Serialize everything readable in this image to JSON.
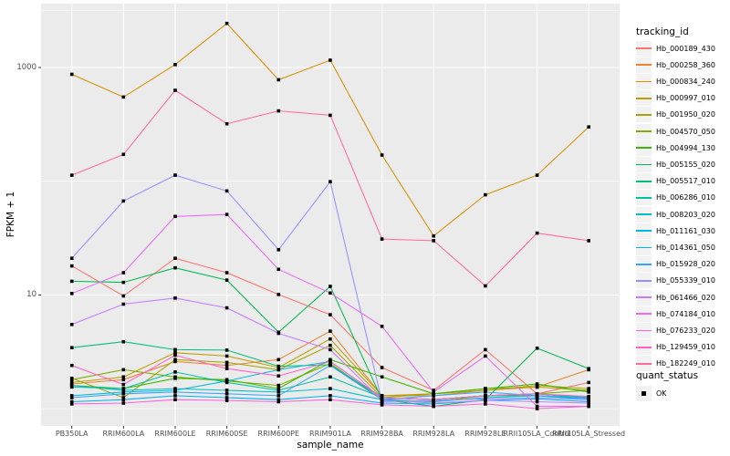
{
  "chart_data": {
    "type": "line",
    "title": "",
    "xlabel": "sample_name",
    "ylabel": "FPKM + 1",
    "y_scale": "log10",
    "ylim": [
      0.9,
      3600
    ],
    "grid": true,
    "legend_position": "right",
    "y_ticks": [
      {
        "label": "1000",
        "value": 1000
      },
      {
        "label": "10",
        "value": 10
      }
    ],
    "y_minor_gridlines": [
      1,
      100,
      3162
    ],
    "categories": [
      "PB350LA",
      "RRIM600LA",
      "RRIM600LE",
      "RRIM600SE",
      "RRIM600PE",
      "RRIM901LA",
      "RRIM928BA",
      "RRIM928LA",
      "RRIM928LE",
      "RRII105LA_Control",
      "RRII105LA_Stressed"
    ],
    "marker": {
      "shape": "square",
      "color": "#000000",
      "legend_group": "quant_status"
    },
    "series": [
      {
        "name": "Hb_000189_430",
        "color": "#F8766D",
        "values": [
          18,
          9.8,
          21,
          15.7,
          10.1,
          6.7,
          2.3,
          1.45,
          3.3,
          1.35,
          1.7
        ]
      },
      {
        "name": "Hb_000258_360",
        "color": "#EA8331",
        "values": [
          1.65,
          1.8,
          2.6,
          2.4,
          2.7,
          4.8,
          1.3,
          1.3,
          1.45,
          1.55,
          2.2
        ]
      },
      {
        "name": "Hb_000834_240",
        "color": "#D89000",
        "values": [
          870,
          550,
          1060,
          2440,
          780,
          1160,
          170,
          33,
          76,
          113,
          300
        ]
      },
      {
        "name": "Hb_000997_010",
        "color": "#C09B00",
        "values": [
          1.7,
          1.9,
          3.1,
          2.9,
          2.3,
          4.1,
          1.3,
          1.35,
          1.5,
          1.55,
          1.45
        ]
      },
      {
        "name": "Hb_001950_020",
        "color": "#A3A500",
        "values": [
          1.85,
          1.25,
          2.7,
          2.55,
          2.2,
          3.6,
          1.25,
          1.35,
          1.45,
          1.6,
          1.5
        ]
      },
      {
        "name": "Hb_004570_050",
        "color": "#7CAE00",
        "values": [
          1.8,
          2.2,
          1.9,
          1.75,
          1.6,
          2.5,
          1.2,
          1.15,
          1.3,
          1.35,
          1.45
        ]
      },
      {
        "name": "Hb_004994_130",
        "color": "#39B600",
        "values": [
          1.6,
          1.5,
          1.85,
          1.8,
          1.5,
          2.7,
          1.9,
          1.35,
          1.5,
          1.65,
          1.4
        ]
      },
      {
        "name": "Hb_005155_020",
        "color": "#00BB4E",
        "values": [
          13.2,
          12.9,
          17.3,
          13.5,
          4.7,
          11.9,
          1.2,
          1.05,
          1.2,
          3.4,
          2.25
        ]
      },
      {
        "name": "Hb_005517_010",
        "color": "#00BF7D",
        "values": [
          3.44,
          3.88,
          3.3,
          3.27,
          2.36,
          2.43,
          1.25,
          1.2,
          1.3,
          1.3,
          1.25
        ]
      },
      {
        "name": "Hb_006286_010",
        "color": "#00C1A3",
        "values": [
          1.55,
          1.5,
          2.1,
          1.7,
          1.45,
          1.9,
          1.25,
          1.2,
          1.3,
          1.35,
          1.25
        ]
      },
      {
        "name": "Hb_008203_020",
        "color": "#00BFC4",
        "values": [
          1.6,
          1.45,
          1.5,
          1.45,
          1.4,
          1.5,
          1.2,
          1.15,
          1.25,
          1.3,
          1.2
        ]
      },
      {
        "name": "Hb_011161_030",
        "color": "#00BAE0",
        "values": [
          1.3,
          1.4,
          1.45,
          1.75,
          2.2,
          2.6,
          1.25,
          1.2,
          1.3,
          1.35,
          1.25
        ]
      },
      {
        "name": "Hb_014361_050",
        "color": "#00B0F6",
        "values": [
          1.15,
          1.2,
          1.3,
          1.25,
          1.2,
          1.3,
          1.12,
          1.1,
          1.18,
          1.22,
          1.15
        ]
      },
      {
        "name": "Hb_015928_020",
        "color": "#35A2FF",
        "values": [
          1.25,
          1.35,
          1.4,
          1.35,
          1.3,
          2.4,
          1.2,
          1.3,
          1.4,
          1.3,
          1.22
        ]
      },
      {
        "name": "Hb_055339_010",
        "color": "#9590FF",
        "values": [
          21,
          67,
          113,
          82,
          25,
          99,
          1.15,
          1.18,
          1.22,
          1.25,
          1.2
        ]
      },
      {
        "name": "Hb_061466_020",
        "color": "#C77CFF",
        "values": [
          5.5,
          8.3,
          9.4,
          7.7,
          4.6,
          3.3,
          1.18,
          1.12,
          1.18,
          1.15,
          1.12
        ]
      },
      {
        "name": "Hb_074184_010",
        "color": "#E76BF3",
        "values": [
          10.3,
          15.7,
          49,
          51,
          16.8,
          10.4,
          5.3,
          1.4,
          2.9,
          1.05,
          1.05
        ]
      },
      {
        "name": "Hb_076233_020",
        "color": "#FA62DB",
        "values": [
          1.1,
          1.12,
          1.2,
          1.18,
          1.15,
          1.2,
          1.08,
          1.05,
          1.1,
          1.0,
          1.05
        ]
      },
      {
        "name": "Hb_129459_010",
        "color": "#FF61C3",
        "values": [
          2.4,
          1.63,
          2.95,
          2.25,
          1.94,
          2.6,
          1.25,
          1.2,
          1.3,
          1.35,
          1.28
        ]
      },
      {
        "name": "Hb_182249_010",
        "color": "#FF67A4",
        "values": [
          113,
          172,
          630,
          320,
          415,
          380,
          31,
          30,
          12,
          35,
          30
        ]
      }
    ]
  },
  "legend": {
    "tracking_title": "tracking_id",
    "quant_title": "quant_status",
    "quant_items": [
      {
        "label": "OK",
        "marker": "black-square"
      }
    ]
  },
  "colors": {
    "page_bg": "#FFFFFF",
    "panel_bg": "#EBEBEB",
    "gridline": "#FFFFFF",
    "tick_mark": "#333333",
    "tick_label": "#4D4D4D",
    "axis_title": "#000000",
    "legend_key_bg": "#F2F2F2",
    "point": "#000000"
  }
}
